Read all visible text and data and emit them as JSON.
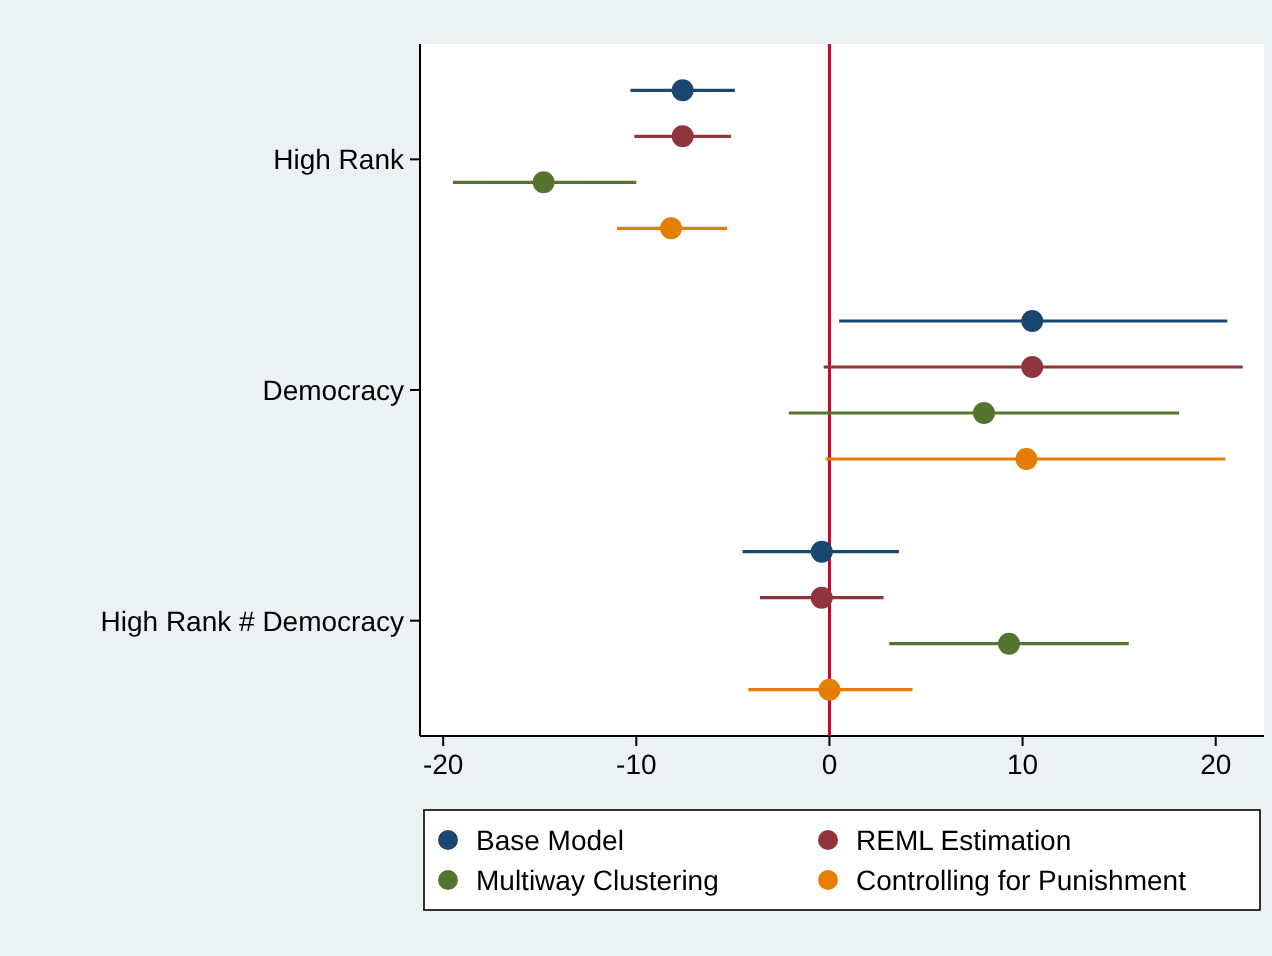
{
  "chart_data": {
    "type": "scatter",
    "orientation": "horizontal",
    "categories": [
      "High Rank",
      "Democracy",
      "High Rank # Democracy"
    ],
    "series": [
      {
        "name": "Base Model",
        "color": "#1a476f",
        "values": [
          -7.6,
          10.5,
          -0.4
        ],
        "errors": [
          [
            -10.3,
            -4.9
          ],
          [
            0.5,
            20.6
          ],
          [
            -4.5,
            3.6
          ]
        ]
      },
      {
        "name": "REML Estimation",
        "color": "#90353b",
        "values": [
          -7.6,
          10.5,
          -0.4
        ],
        "errors": [
          [
            -10.1,
            -5.1
          ],
          [
            -0.3,
            21.4
          ],
          [
            -3.6,
            2.8
          ]
        ]
      },
      {
        "name": "Multiway Clustering",
        "color": "#55752f",
        "values": [
          -14.8,
          8.0,
          9.3
        ],
        "errors": [
          [
            -19.5,
            -10.0
          ],
          [
            -2.1,
            18.1
          ],
          [
            3.1,
            15.5
          ]
        ]
      },
      {
        "name": "Controlling for Punishment",
        "color": "#e37e00",
        "values": [
          -8.2,
          10.2,
          0.0
        ],
        "errors": [
          [
            -11.0,
            -5.3
          ],
          [
            -0.2,
            20.5
          ],
          [
            -4.2,
            4.3
          ]
        ]
      }
    ],
    "xlim": [
      -21.2,
      22.5
    ],
    "xticks": [
      -20,
      -10,
      0,
      10,
      20
    ],
    "ref_lines": [
      {
        "axis": "x",
        "value": 0,
        "color": "#c10534"
      }
    ],
    "legend": "bottom",
    "marker": "circle"
  }
}
